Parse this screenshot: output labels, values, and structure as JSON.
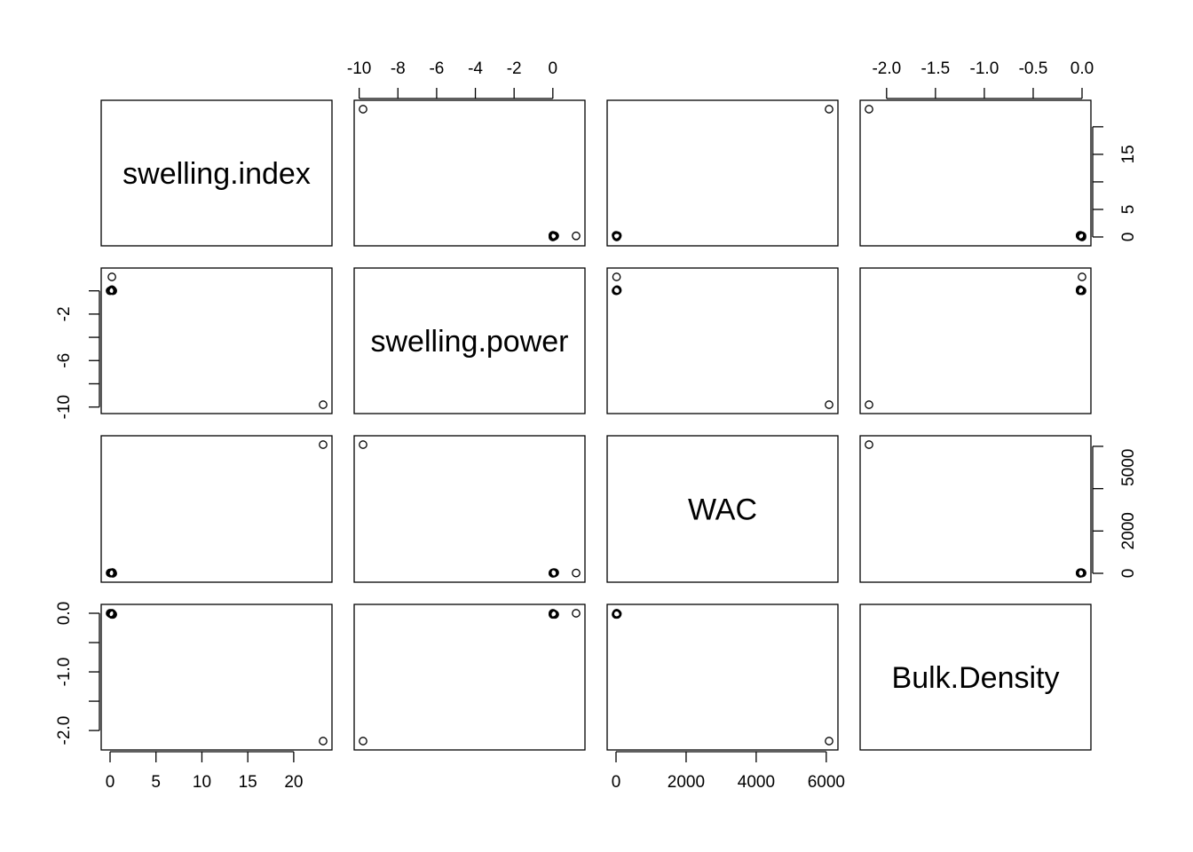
{
  "chart_data": {
    "type": "scatter-matrix",
    "variables": [
      "swelling.index",
      "swelling.power",
      "WAC",
      "Bulk.Density"
    ],
    "ticks": {
      "swelling.index": [
        0,
        5,
        10,
        15,
        20
      ],
      "swelling.power": [
        -10,
        -8,
        -6,
        -4,
        -2,
        0
      ],
      "WAC": [
        0,
        2000,
        4000,
        6000
      ],
      "Bulk.Density": [
        -2.0,
        -1.5,
        -1.0,
        -0.5,
        0.0
      ]
    },
    "tick_labels": {
      "swelling.index_bottom": [
        "0",
        "5",
        "10",
        "15",
        "20"
      ],
      "swelling.index_right": [
        "0",
        "5",
        "15"
      ],
      "swelling.power_top": [
        "-10",
        "-8",
        "-6",
        "-4",
        "-2",
        "0"
      ],
      "swelling.power_left": [
        "-10",
        "-6",
        "-2"
      ],
      "WAC_bottom": [
        "0",
        "2000",
        "4000",
        "6000"
      ],
      "WAC_right": [
        "0",
        "2000",
        "5000"
      ],
      "Bulk.Density_top": [
        "-2.0",
        "-1.5",
        "-1.0",
        "-0.5",
        "0.0"
      ],
      "Bulk.Density_left": [
        "-2.0",
        "-1.0",
        "0.0"
      ]
    },
    "ranges": {
      "swelling.index": [
        0,
        23.2
      ],
      "swelling.power": [
        -9.8,
        1.2
      ],
      "WAC": [
        0,
        6080
      ],
      "Bulk.Density": [
        -2.18,
        0.0
      ]
    },
    "observations": [
      {
        "swelling.index": 0.0,
        "swelling.power": 0.0,
        "WAC": 20,
        "Bulk.Density": 0.0
      },
      {
        "swelling.index": 0.1,
        "swelling.power": 0.05,
        "WAC": 10,
        "Bulk.Density": -0.01
      },
      {
        "swelling.index": 0.2,
        "swelling.power": 0.1,
        "WAC": 30,
        "Bulk.Density": -0.02
      },
      {
        "swelling.index": 0.25,
        "swelling.power": 0.05,
        "WAC": 40,
        "Bulk.Density": -0.01
      },
      {
        "swelling.index": 0.3,
        "swelling.power": 0.0,
        "WAC": 0,
        "Bulk.Density": -0.02
      },
      {
        "swelling.index": 0.2,
        "swelling.power": 1.2,
        "WAC": 15,
        "Bulk.Density": 0.0
      },
      {
        "swelling.index": 23.2,
        "swelling.power": -9.8,
        "WAC": 6080,
        "Bulk.Density": -2.18
      }
    ],
    "grid": false,
    "legend": "none"
  }
}
